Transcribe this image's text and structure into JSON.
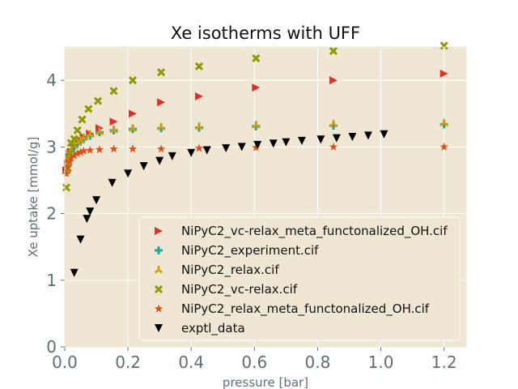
{
  "chart_data": {
    "type": "scatter",
    "title": "Xe isotherms with UFF",
    "xlabel": "pressure [bar]",
    "ylabel": "Xe uptake [mmol/g]",
    "xlim": [
      0,
      1.27
    ],
    "ylim": [
      0,
      4.5
    ],
    "xticks": [
      0.0,
      0.2,
      0.4,
      0.6,
      0.8,
      1.0,
      1.2
    ],
    "xtick_labels": [
      "0.0",
      "0.2",
      "0.4",
      "0.6",
      "0.8",
      "1.0",
      "1.2"
    ],
    "yticks": [
      0,
      1,
      2,
      3,
      4
    ],
    "ytick_labels": [
      "0",
      "1",
      "2",
      "3",
      "4"
    ],
    "grid": true,
    "legend_position": "lower-right",
    "background": "#efe6d3",
    "series": [
      {
        "name": "NiPyC2_vc-relax_meta_functonalized_OH.cif",
        "marker": "triangle-right",
        "color": "#d9332b",
        "x": [
          0.005,
          0.01,
          0.015,
          0.02,
          0.03,
          0.04,
          0.05,
          0.06,
          0.08,
          0.11,
          0.155,
          0.215,
          0.305,
          0.425,
          0.605,
          0.85,
          1.2
        ],
        "y": [
          2.65,
          2.75,
          2.85,
          2.93,
          3.0,
          3.05,
          3.1,
          3.15,
          3.2,
          3.28,
          3.38,
          3.5,
          3.67,
          3.76,
          3.89,
          4.0,
          4.1
        ]
      },
      {
        "name": "NiPyC2_experiment.cif",
        "marker": "plus",
        "color": "#26a69a",
        "x": [
          0.005,
          0.01,
          0.015,
          0.02,
          0.03,
          0.04,
          0.05,
          0.06,
          0.08,
          0.11,
          0.155,
          0.215,
          0.305,
          0.425,
          0.605,
          0.85,
          1.2
        ],
        "y": [
          2.62,
          2.75,
          2.86,
          2.93,
          3.0,
          3.05,
          3.08,
          3.12,
          3.17,
          3.22,
          3.25,
          3.27,
          3.28,
          3.29,
          3.31,
          3.32,
          3.34
        ]
      },
      {
        "name": "NiPyC2_relax.cif",
        "marker": "tri-up",
        "color": "#d99a00",
        "x": [
          0.005,
          0.01,
          0.015,
          0.02,
          0.03,
          0.04,
          0.05,
          0.06,
          0.08,
          0.11,
          0.155,
          0.215,
          0.305,
          0.425,
          0.605,
          0.85,
          1.2
        ],
        "y": [
          2.64,
          2.77,
          2.87,
          2.95,
          3.02,
          3.07,
          3.1,
          3.14,
          3.19,
          3.23,
          3.26,
          3.28,
          3.3,
          3.31,
          3.33,
          3.35,
          3.36
        ]
      },
      {
        "name": "NiPyC2_vc-relax.cif",
        "marker": "x",
        "color": "#8a9a00",
        "x": [
          0.005,
          0.01,
          0.015,
          0.02,
          0.03,
          0.04,
          0.055,
          0.075,
          0.105,
          0.155,
          0.215,
          0.305,
          0.425,
          0.605,
          0.85,
          1.2
        ],
        "y": [
          2.39,
          2.68,
          2.9,
          3.06,
          3.12,
          3.25,
          3.41,
          3.57,
          3.69,
          3.84,
          4.0,
          4.12,
          4.21,
          4.33,
          4.44,
          4.52
        ]
      },
      {
        "name": "NiPyC2_relax_meta_functonalized_OH.cif",
        "marker": "star",
        "color": "#d9531e",
        "x": [
          0.005,
          0.01,
          0.015,
          0.02,
          0.03,
          0.04,
          0.05,
          0.06,
          0.08,
          0.11,
          0.155,
          0.215,
          0.305,
          0.425,
          0.605,
          0.85,
          1.2
        ],
        "y": [
          2.6,
          2.7,
          2.78,
          2.83,
          2.87,
          2.9,
          2.92,
          2.94,
          2.95,
          2.96,
          2.97,
          2.97,
          2.97,
          2.98,
          2.99,
          3.0,
          3.0
        ]
      },
      {
        "name": "exptl_data",
        "marker": "triangle-down",
        "color": "#000000",
        "x": [
          0.03,
          0.05,
          0.07,
          0.08,
          0.1,
          0.15,
          0.2,
          0.25,
          0.3,
          0.34,
          0.4,
          0.45,
          0.51,
          0.56,
          0.61,
          0.66,
          0.7,
          0.75,
          0.81,
          0.86,
          0.91,
          0.96,
          1.01
        ],
        "y": [
          1.11,
          1.61,
          1.92,
          2.03,
          2.2,
          2.46,
          2.6,
          2.71,
          2.79,
          2.86,
          2.91,
          2.95,
          2.98,
          3.0,
          3.03,
          3.05,
          3.07,
          3.09,
          3.11,
          3.13,
          3.15,
          3.17,
          3.19
        ]
      }
    ]
  }
}
